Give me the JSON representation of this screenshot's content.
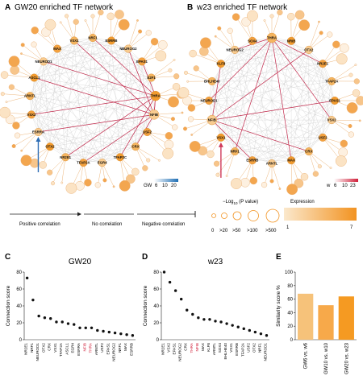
{
  "panelA": {
    "letter": "A",
    "title": "GW20 enriched TF network",
    "nodes": [
      "NRF1",
      "ESRRB",
      "NEUROG2",
      "EPAS1",
      "E2F1",
      "THRA",
      "NFIB",
      "USF2",
      "CRX",
      "TFAP2C",
      "EGR4",
      "TFAP2A",
      "NR2E1",
      "OTX2",
      "ESRRA",
      "VSX2",
      "ARNTL",
      "ASCL1",
      "NEUROD1",
      "MAX",
      "VSX1"
    ],
    "highlight_nodes": [
      "THRA",
      "NFIB"
    ],
    "scale": {
      "label": "GW",
      "ticks": [
        "6",
        "10",
        "20"
      ]
    }
  },
  "panelB": {
    "letter": "B",
    "title": "w23 enriched TF network",
    "nodes": [
      "THRA",
      "NRIB",
      "OTX2",
      "NR2E1",
      "TFAP2A",
      "EPAS1",
      "VSX2",
      "USF2",
      "CRX",
      "MAX",
      "ARNTL",
      "ESRRB",
      "NRF1",
      "VSX1",
      "NFIB",
      "NEUROD1",
      "BHLHE40",
      "KLF8",
      "NEUROG2",
      "SOX4"
    ],
    "highlight_nodes": [
      "THRA",
      "NFIB"
    ],
    "scale": {
      "label": "w",
      "ticks": [
        "6",
        "10",
        "23"
      ]
    }
  },
  "legend": {
    "pvalue_label_prefix": "−Log",
    "pvalue_label_sub": "10",
    "pvalue_label_suffix": " (P value)",
    "pvalue_ticks": [
      "0",
      ">20",
      ">50",
      ">100",
      ">500"
    ],
    "expression_label": "Expression",
    "expression_ticks": [
      "1",
      "7"
    ],
    "correlations": [
      "Positive correlation",
      "No correlation",
      "Negative correlation"
    ]
  },
  "chart_data": [
    {
      "panel": "C",
      "type": "scatter",
      "title": "GW20",
      "xlabel": "",
      "ylabel": "Connection score",
      "ylim": [
        0,
        80
      ],
      "yticks": [
        0,
        20,
        40,
        60,
        80
      ],
      "categories": [
        "NR2E1",
        "NRF1",
        "NEUROD1",
        "OTX2",
        "CRX",
        "VSX1",
        "TFAP2A",
        "ASCL1",
        "EGR4",
        "ESRRA",
        "NFIB",
        "THRA",
        "ARNTL",
        "USF2",
        "EPAS1",
        "NEUROG2",
        "NRF1",
        "MAX",
        "ESRRB"
      ],
      "values": [
        73,
        47,
        28,
        26,
        25,
        21,
        21,
        19,
        18,
        14,
        14,
        14,
        11,
        10,
        9,
        8,
        7,
        6,
        5
      ],
      "highlight": [
        "NFIB",
        "THRA"
      ]
    },
    {
      "panel": "D",
      "type": "scatter",
      "title": "w23",
      "xlabel": "",
      "ylabel": "Connection score",
      "ylim": [
        0,
        80
      ],
      "yticks": [
        0,
        20,
        40,
        60,
        80
      ],
      "categories": [
        "NR2E1",
        "VSX2",
        "EPAS1",
        "NEUROG2",
        "CRX",
        "THRA",
        "NFIB",
        "MAX",
        "KLF8",
        "ARNTL",
        "SOX4",
        "BHLHE40",
        "VSX1",
        "ESRRB",
        "TFAP2A",
        "USF2",
        "OTX2",
        "NRF1",
        "NEUROD1"
      ],
      "values": [
        80,
        68,
        58,
        48,
        35,
        30,
        26,
        24,
        24,
        22,
        21,
        19,
        17,
        15,
        13,
        11,
        9,
        7,
        5
      ],
      "highlight": [
        "THRA",
        "NFIB"
      ]
    },
    {
      "panel": "E",
      "type": "bar",
      "title": "",
      "xlabel": "",
      "ylabel": "Similarity score %",
      "ylim": [
        0,
        100
      ],
      "yticks": [
        0,
        20,
        40,
        60,
        80,
        100
      ],
      "categories": [
        "GW6 vs. w6",
        "GW10 vs. w10",
        "GW20 vs. w23"
      ],
      "values": [
        68,
        51,
        64
      ],
      "colors": [
        "#f6c27a",
        "#f7a94a",
        "#f59a22"
      ]
    }
  ]
}
